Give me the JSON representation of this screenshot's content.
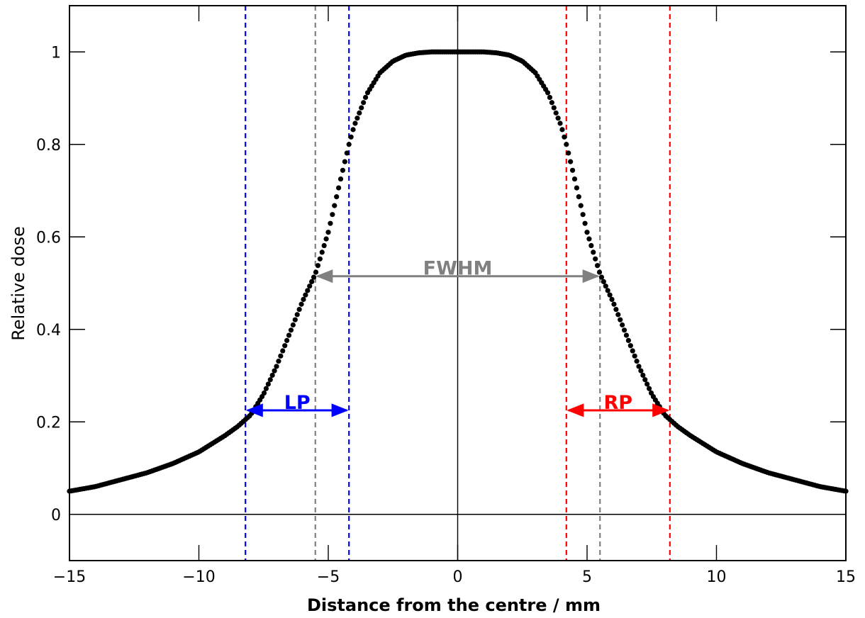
{
  "chart_data": {
    "type": "scatter",
    "title": "",
    "xlabel": "Distance from the centre / mm",
    "ylabel": "Relative dose",
    "xlim": [
      -15,
      15
    ],
    "ylim": [
      -0.1,
      1.1
    ],
    "xticks": [
      -15,
      -10,
      -5,
      0,
      5,
      10,
      15
    ],
    "xtick_labels": [
      "−15",
      "−10",
      "−5",
      "0",
      "5",
      "10",
      "15"
    ],
    "yticks": [
      0,
      0.2,
      0.4,
      0.6,
      0.8,
      1
    ],
    "ytick_labels": [
      "0",
      "0.2",
      "0.4",
      "0.6",
      "0.8",
      "1"
    ],
    "grid": false,
    "series": [
      {
        "color": "#000000",
        "marker": "circle",
        "x": [
          -15,
          -14,
          -13,
          -12,
          -11,
          -10,
          -9,
          -8.5,
          -8.2,
          -8,
          -7.5,
          -7,
          -6.5,
          -6,
          -5.5,
          -5,
          -4.5,
          -4.2,
          -4,
          -3.5,
          -3,
          -2.5,
          -2,
          -1.5,
          -1,
          0,
          1,
          1.5,
          2,
          2.5,
          3,
          3.5,
          4,
          4.2,
          4.5,
          5,
          5.5,
          6,
          6.5,
          7,
          7.5,
          8,
          8.2,
          8.5,
          9,
          10,
          11,
          12,
          13,
          14,
          15
        ],
        "y": [
          0.05,
          0.06,
          0.075,
          0.09,
          0.11,
          0.135,
          0.17,
          0.19,
          0.205,
          0.215,
          0.26,
          0.32,
          0.39,
          0.46,
          0.52,
          0.61,
          0.73,
          0.8,
          0.84,
          0.91,
          0.955,
          0.98,
          0.993,
          0.998,
          1.0,
          1.0,
          1.0,
          0.998,
          0.993,
          0.98,
          0.955,
          0.91,
          0.84,
          0.8,
          0.73,
          0.61,
          0.52,
          0.46,
          0.39,
          0.32,
          0.26,
          0.215,
          0.205,
          0.19,
          0.17,
          0.135,
          0.11,
          0.09,
          0.075,
          0.06,
          0.05
        ]
      }
    ],
    "reference_lines": [
      {
        "axis": "x",
        "value": 0,
        "color": "#000000",
        "style": "solid"
      },
      {
        "axis": "y",
        "value": 0,
        "color": "#000000",
        "style": "solid"
      },
      {
        "axis": "x",
        "value": -8.2,
        "color": "#0000ff",
        "style": "dashed"
      },
      {
        "axis": "x",
        "value": -4.2,
        "color": "#0000ff",
        "style": "dashed"
      },
      {
        "axis": "x",
        "value": -5.5,
        "color": "#808080",
        "style": "dashed"
      },
      {
        "axis": "x",
        "value": 5.5,
        "color": "#808080",
        "style": "dashed"
      },
      {
        "axis": "x",
        "value": 4.2,
        "color": "#ff0000",
        "style": "dashed"
      },
      {
        "axis": "x",
        "value": 8.2,
        "color": "#ff0000",
        "style": "dashed"
      }
    ],
    "annotations": [
      {
        "name": "fwhm",
        "text": "FWHM",
        "x_from": -5.5,
        "x_to": 5.5,
        "y": 0.515,
        "color": "#808080"
      },
      {
        "name": "lp",
        "text": "LP",
        "x_from": -8.2,
        "x_to": -4.2,
        "y": 0.225,
        "color": "#0000ff"
      },
      {
        "name": "rp",
        "text": "RP",
        "x_from": 4.2,
        "x_to": 8.2,
        "y": 0.225,
        "color": "#ff0000"
      }
    ]
  }
}
